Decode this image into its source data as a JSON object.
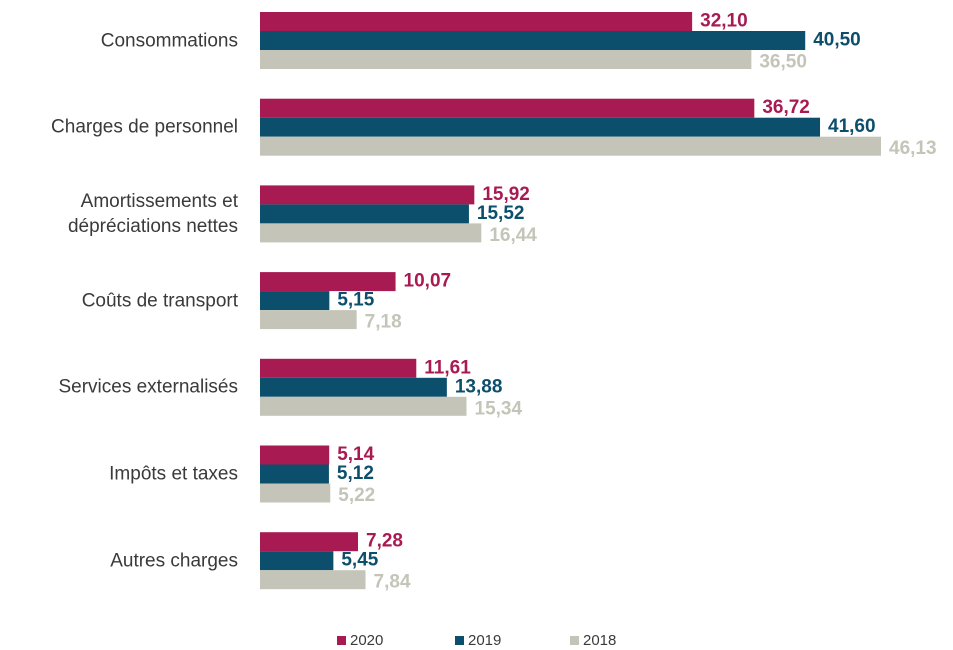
{
  "chart_data": {
    "type": "bar",
    "orientation": "horizontal",
    "categories": [
      "Consommations",
      "Charges de personnel",
      "Amortissements et\ndépréciations nettes",
      "Coûts de transport",
      "Services externalisés",
      "Impôts et taxes",
      "Autres charges"
    ],
    "series": [
      {
        "name": "2020",
        "color": "#a81b52",
        "values": [
          32.1,
          36.72,
          15.92,
          10.07,
          11.61,
          5.14,
          7.28
        ],
        "value_labels": [
          "32,10",
          "36,72",
          "15,92",
          "10,07",
          "11,61",
          "5,14",
          "7,28"
        ]
      },
      {
        "name": "2019",
        "color": "#0b4f6c",
        "values": [
          40.5,
          41.6,
          15.52,
          5.15,
          13.88,
          5.12,
          5.45
        ],
        "value_labels": [
          "40,50",
          "41,60",
          "15,52",
          "5,15",
          "13,88",
          "5,12",
          "5,45"
        ]
      },
      {
        "name": "2018",
        "color": "#c4c5b8",
        "values": [
          36.5,
          46.13,
          16.44,
          7.18,
          15.34,
          5.22,
          7.84
        ],
        "value_labels": [
          "36,50",
          "46,13",
          "16,44",
          "7,18",
          "15,34",
          "5,22",
          "7,84"
        ]
      }
    ],
    "legend": "bottom"
  }
}
